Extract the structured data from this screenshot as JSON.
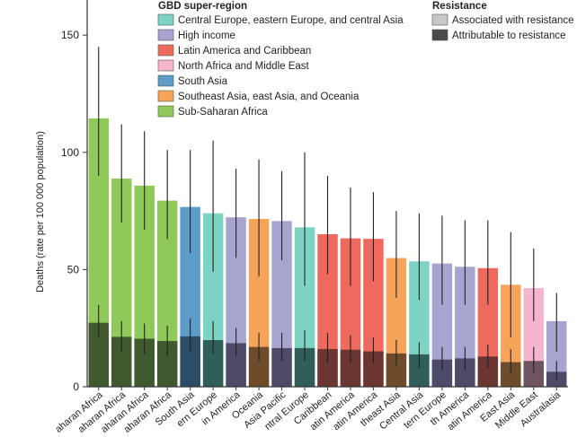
{
  "chart_data": {
    "type": "bar",
    "ylabel": "Deaths (rate per 100 000 population)",
    "ylim": [
      0,
      165
    ],
    "yticks": [
      0,
      50,
      100,
      150
    ],
    "super_region_title": "GBD super-region",
    "resistance_title": "Resistance",
    "super_regions": [
      {
        "key": "ce",
        "name": "Central Europe, eastern Europe, and central Asia",
        "color": "#7dd3c4",
        "dark": "#2f5f58"
      },
      {
        "key": "hi",
        "name": "High income",
        "color": "#a7a4cf",
        "dark": "#4d4b67"
      },
      {
        "key": "la",
        "name": "Latin America and Caribbean",
        "color": "#ee6a5e",
        "dark": "#6b3631"
      },
      {
        "key": "na",
        "name": "North Africa and Middle East",
        "color": "#f6b5cf",
        "dark": "#6e5360"
      },
      {
        "key": "sa",
        "name": "South Asia",
        "color": "#5d9cc8",
        "dark": "#2b4e66"
      },
      {
        "key": "se",
        "name": "Southeast Asia, east Asia, and Oceania",
        "color": "#f6a45a",
        "dark": "#6d4b2b"
      },
      {
        "key": "ss",
        "name": "Sub-Saharan Africa",
        "color": "#8ec95a",
        "dark": "#3f5a2f"
      }
    ],
    "resistance_legend": [
      {
        "name": "Associated with resistance",
        "color": "#c8c8c8"
      },
      {
        "name": "Attributable to resistance",
        "color": "#4a4a4a"
      }
    ],
    "categories": [
      "Western Sub-Saharan Africa",
      "Eastern Sub-Saharan Africa",
      "Central Sub-Saharan Africa",
      "Southern Sub-Saharan Africa",
      "South Asia",
      "Eastern Europe",
      "Southern Latin America",
      "Oceania",
      "High-income Asia Pacific",
      "Central Europe",
      "Caribbean",
      "Andean Latin America",
      "Central Latin America",
      "Southeast Asia",
      "Central Asia",
      "Western Europe",
      "High-income North America",
      "Tropical Latin America",
      "East Asia",
      "North Africa and Middle East",
      "Australasia"
    ],
    "visible_tick_labels": [
      "aharan Africa",
      "aharan Africa",
      "aharan Africa",
      "aharan Africa",
      "South Asia",
      "ern Europe",
      "in America",
      "Oceania",
      "Asia Pacific",
      "ntral Europe",
      "Caribbean",
      "atin America",
      "atin America",
      "theast Asia",
      "Central Asia",
      "tern Europe",
      "th America",
      "atin America",
      "East Asia",
      "Middle East",
      "Australasia"
    ],
    "super_region_of_bar": [
      "ss",
      "ss",
      "ss",
      "ss",
      "sa",
      "ce",
      "hi",
      "se",
      "hi",
      "ce",
      "la",
      "la",
      "la",
      "se",
      "ce",
      "hi",
      "hi",
      "la",
      "se",
      "na",
      "hi"
    ],
    "associated_values": [
      114.5,
      88.8,
      85.8,
      79.4,
      76.7,
      74.0,
      72.3,
      71.6,
      70.7,
      68.0,
      65.1,
      63.3,
      63.1,
      54.9,
      53.5,
      52.6,
      51.2,
      50.6,
      43.5,
      42.1,
      28.0
    ],
    "associated_error": [
      [
        90,
        145
      ],
      [
        70,
        112
      ],
      [
        67,
        109
      ],
      [
        63,
        101
      ],
      [
        57,
        101
      ],
      [
        49,
        105
      ],
      [
        55,
        93
      ],
      [
        47,
        97
      ],
      [
        54,
        92
      ],
      [
        43,
        100
      ],
      [
        48,
        90
      ],
      [
        43,
        85
      ],
      [
        45,
        83
      ],
      [
        38,
        75
      ],
      [
        37,
        74
      ],
      [
        35,
        73
      ],
      [
        35,
        71
      ],
      [
        35,
        71
      ],
      [
        21,
        66
      ],
      [
        28,
        59
      ],
      [
        15,
        40
      ]
    ],
    "attributable_values": [
      27.3,
      21.3,
      20.5,
      19.5,
      21.5,
      19.9,
      18.6,
      17.0,
      16.5,
      16.5,
      16.1,
      15.8,
      15.1,
      14.2,
      13.8,
      11.6,
      12.1,
      12.9,
      10.5,
      11.0,
      6.4
    ],
    "attributable_error": [
      [
        21,
        35
      ],
      [
        15,
        28
      ],
      [
        14,
        27
      ],
      [
        13,
        26
      ],
      [
        15,
        29
      ],
      [
        14,
        28
      ],
      [
        13,
        25
      ],
      [
        11,
        23
      ],
      [
        11,
        23
      ],
      [
        11,
        24
      ],
      [
        10,
        23
      ],
      [
        10,
        22
      ],
      [
        10,
        21
      ],
      [
        9,
        20
      ],
      [
        8,
        19
      ],
      [
        7,
        17
      ],
      [
        7,
        17
      ],
      [
        8,
        18
      ],
      [
        6,
        16
      ],
      [
        6,
        17
      ],
      [
        3,
        11
      ]
    ]
  }
}
